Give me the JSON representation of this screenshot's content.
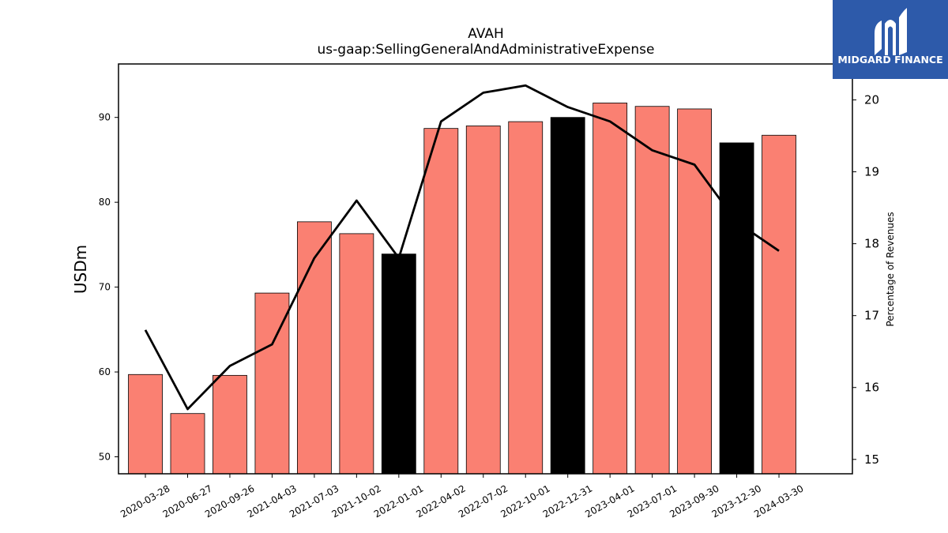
{
  "chart_data": {
    "type": "bar",
    "title": "AVAH",
    "subtitle": "us-gaap:SellingGeneralAndAdministrativeExpense",
    "ylabel": "USDm",
    "y2label": "Percentage of Revenues",
    "categories": [
      "2020-03-28",
      "2020-06-27",
      "2020-09-26",
      "2021-04-03",
      "2021-07-03",
      "2021-10-02",
      "2022-01-01",
      "2022-04-02",
      "2022-07-02",
      "2022-10-01",
      "2022-12-31",
      "2023-04-01",
      "2023-07-01",
      "2023-09-30",
      "2023-12-30",
      "2024-03-30"
    ],
    "series": [
      {
        "type": "bar",
        "axis": "left",
        "values": [
          59.7,
          55.1,
          59.6,
          69.3,
          77.7,
          76.3,
          73.9,
          88.7,
          89.0,
          89.5,
          90.0,
          91.7,
          91.3,
          91.0,
          87.0,
          87.9
        ],
        "highlight": [
          false,
          false,
          false,
          false,
          false,
          false,
          true,
          false,
          false,
          false,
          true,
          false,
          false,
          false,
          true,
          false
        ]
      },
      {
        "type": "line",
        "axis": "right",
        "values": [
          16.8,
          15.7,
          16.3,
          16.6,
          17.8,
          18.6,
          17.8,
          19.7,
          20.1,
          20.2,
          19.9,
          19.7,
          19.3,
          19.1,
          18.3,
          17.9
        ]
      }
    ],
    "ylim": [
      48,
      96.3
    ],
    "y2lim": [
      14.8,
      20.5
    ],
    "yticks": [
      50,
      60,
      70,
      80,
      90
    ],
    "y2ticks": [
      15,
      16,
      17,
      18,
      19,
      20
    ],
    "grid": false,
    "colors": {
      "bar": "#fa8072",
      "bar_highlight": "#000000",
      "line": "#000000"
    }
  },
  "logo": {
    "text": "MIDGARD FINANCE",
    "bg": "#2d5aaa"
  }
}
